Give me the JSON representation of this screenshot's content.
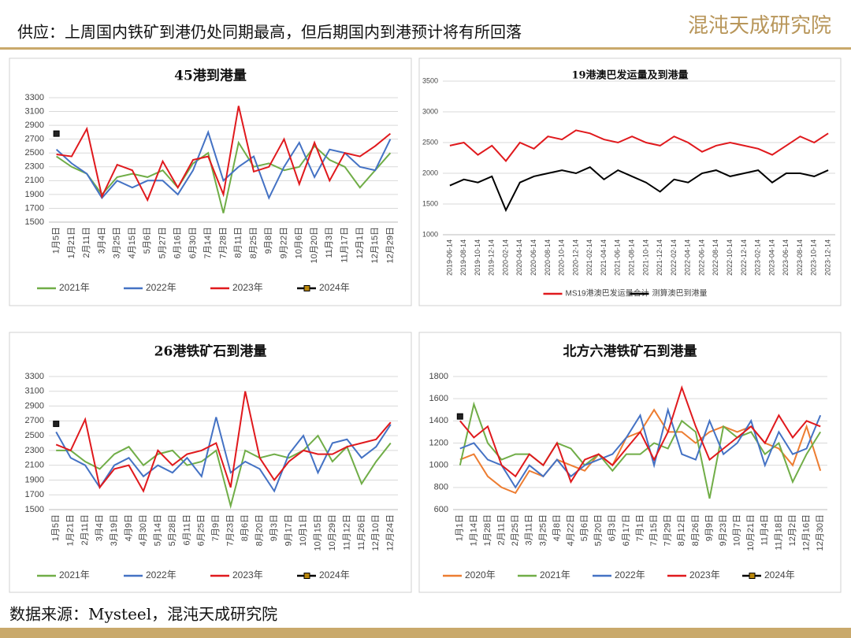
{
  "header": {
    "title": "供应：上周国内铁矿到港仍处同期最高，但后期国内到港预计将有所回落",
    "logo": "混沌天成研究院"
  },
  "footer": "数据来源：Mysteel，混沌天成研究院",
  "chart_data": [
    {
      "type": "line",
      "title": "45港到港量",
      "categories": [
        "1月5日",
        "1月21日",
        "2月11日",
        "3月4日",
        "3月25日",
        "4月15日",
        "5月6日",
        "5月27日",
        "6月16日",
        "6月30日",
        "7月14日",
        "7月28日",
        "8月11日",
        "8月25日",
        "9月8日",
        "9月22日",
        "10月6日",
        "10月20日",
        "11月3日",
        "11月17日",
        "12月1日",
        "12月15日",
        "12月29日"
      ],
      "ylim": [
        1500,
        3300
      ],
      "yticks": [
        1500,
        1700,
        1900,
        2100,
        2300,
        2500,
        2700,
        2900,
        3100,
        3300
      ],
      "grid": true,
      "series": [
        {
          "name": "2021年",
          "color": "#70ad47",
          "values": [
            2450,
            2300,
            2200,
            1900,
            2150,
            2200,
            2150,
            2250,
            2000,
            2350,
            2500,
            1630,
            2650,
            2300,
            2350,
            2250,
            2300,
            2600,
            2400,
            2300,
            2000,
            2250,
            2500
          ]
        },
        {
          "name": "2022年",
          "color": "#4472c4",
          "values": [
            2550,
            2350,
            2200,
            1850,
            2100,
            2000,
            2100,
            2100,
            1900,
            2250,
            2800,
            2100,
            2300,
            2450,
            1850,
            2300,
            2650,
            2150,
            2550,
            2500,
            2300,
            2250,
            2700
          ]
        },
        {
          "name": "2023年",
          "color": "#e0191d",
          "values": [
            2480,
            2450,
            2850,
            1870,
            2330,
            2250,
            1820,
            2380,
            2000,
            2400,
            2450,
            1900,
            3180,
            2230,
            2300,
            2700,
            2050,
            2650,
            2100,
            2500,
            2450,
            2600,
            2780
          ]
        },
        {
          "name": "2024年",
          "color": "#000000",
          "marker": "square",
          "values": [
            2780,
            null,
            null,
            null,
            null,
            null,
            null,
            null,
            null,
            null,
            null,
            null,
            null,
            null,
            null,
            null,
            null,
            null,
            null,
            null,
            null,
            null,
            null
          ]
        }
      ]
    },
    {
      "type": "line",
      "title": "19港澳巴发运量及到港量",
      "categories": [
        "2019-06-14",
        "2019-08-14",
        "2019-10-14",
        "2019-12-14",
        "2020-02-14",
        "2020-04-14",
        "2020-06-14",
        "2020-08-14",
        "2020-10-14",
        "2020-12-14",
        "2021-02-14",
        "2021-04-14",
        "2021-06-14",
        "2021-08-14",
        "2021-10-14",
        "2021-12-14",
        "2022-02-14",
        "2022-04-14",
        "2022-06-14",
        "2022-08-14",
        "2022-10-14",
        "2022-12-14",
        "2023-02-14",
        "2023-04-14",
        "2023-06-14",
        "2023-08-14",
        "2023-10-14",
        "2023-12-14"
      ],
      "ylim": [
        1000,
        3500
      ],
      "yticks": [
        1000,
        1500,
        2000,
        2500,
        3000,
        3500
      ],
      "grid": true,
      "series": [
        {
          "name": "MS19港澳巴发运量合计",
          "color": "#e0191d",
          "values": [
            2450,
            2500,
            2300,
            2450,
            2200,
            2500,
            2400,
            2600,
            2550,
            2700,
            2650,
            2550,
            2500,
            2600,
            2500,
            2450,
            2600,
            2500,
            2350,
            2450,
            2500,
            2450,
            2400,
            2300,
            2450,
            2600,
            2500,
            2650
          ]
        },
        {
          "name": "测算澳巴到港量",
          "color": "#000000",
          "values": [
            1800,
            1900,
            1850,
            1950,
            1400,
            1850,
            1950,
            2000,
            2050,
            2000,
            2100,
            1900,
            2050,
            1950,
            1850,
            1700,
            1900,
            1850,
            2000,
            2050,
            1950,
            2000,
            2050,
            1850,
            2000,
            2000,
            1950,
            2050
          ]
        }
      ]
    },
    {
      "type": "line",
      "title": "26港铁矿石到港量",
      "categories": [
        "1月5日",
        "1月21日",
        "2月11日",
        "3月4日",
        "3月19日",
        "4月9日",
        "4月30日",
        "5月14日",
        "5月28日",
        "6月11日",
        "6月25日",
        "7月9日",
        "7月23日",
        "8月6日",
        "8月20日",
        "9月3日",
        "9月17日",
        "10月1日",
        "10月15日",
        "10月29日",
        "11月12日",
        "11月26日",
        "12月10日",
        "12月24日"
      ],
      "ylim": [
        1500,
        3300
      ],
      "yticks": [
        1500,
        1700,
        1900,
        2100,
        2300,
        2500,
        2700,
        2900,
        3100,
        3300
      ],
      "grid": true,
      "series": [
        {
          "name": "2021年",
          "color": "#70ad47",
          "values": [
            2300,
            2300,
            2150,
            2050,
            2250,
            2350,
            2100,
            2250,
            2300,
            2100,
            2150,
            2300,
            1550,
            2300,
            2200,
            2250,
            2200,
            2300,
            2500,
            2150,
            2350,
            1850,
            2150,
            2400
          ]
        },
        {
          "name": "2022年",
          "color": "#4472c4",
          "values": [
            2550,
            2200,
            2100,
            1800,
            2100,
            2200,
            1950,
            2100,
            2000,
            2200,
            1950,
            2750,
            2000,
            2150,
            2050,
            1750,
            2250,
            2500,
            2000,
            2400,
            2450,
            2200,
            2350,
            2650
          ]
        },
        {
          "name": "2023年",
          "color": "#e0191d",
          "values": [
            2380,
            2300,
            2720,
            1800,
            2050,
            2100,
            1750,
            2300,
            2100,
            2250,
            2300,
            2400,
            1800,
            3100,
            2200,
            1900,
            2150,
            2300,
            2250,
            2250,
            2350,
            2400,
            2450,
            2680
          ]
        },
        {
          "name": "2024年",
          "color": "#000000",
          "marker": "square",
          "values": [
            2660,
            null,
            null,
            null,
            null,
            null,
            null,
            null,
            null,
            null,
            null,
            null,
            null,
            null,
            null,
            null,
            null,
            null,
            null,
            null,
            null,
            null,
            null,
            null
          ]
        }
      ]
    },
    {
      "type": "line",
      "title": "北方六港铁矿石到港量",
      "categories": [
        "1月1日",
        "1月14日",
        "1月28日",
        "2月11日",
        "2月25日",
        "3月11日",
        "3月25日",
        "4月8日",
        "4月22日",
        "5月6日",
        "5月20日",
        "6月3日",
        "6月17日",
        "7月1日",
        "7月15日",
        "7月29日",
        "8月12日",
        "8月26日",
        "9月9日",
        "9月23日",
        "10月7日",
        "10月21日",
        "11月4日",
        "11月18日",
        "12月2日",
        "12月16日",
        "12月30日"
      ],
      "ylim": [
        600,
        1800
      ],
      "yticks": [
        600,
        800,
        1000,
        1200,
        1400,
        1600,
        1800
      ],
      "grid": true,
      "series": [
        {
          "name": "2020年",
          "color": "#ed7d31",
          "values": [
            1050,
            1100,
            900,
            800,
            750,
            950,
            900,
            1050,
            1000,
            950,
            1100,
            1000,
            1250,
            1300,
            1500,
            1300,
            1300,
            1200,
            1300,
            1350,
            1300,
            1350,
            1200,
            1150,
            1000,
            1350,
            950
          ]
        },
        {
          "name": "2021年",
          "color": "#70ad47",
          "values": [
            1000,
            1550,
            1200,
            1050,
            1100,
            1100,
            1000,
            1200,
            1150,
            1000,
            1100,
            950,
            1100,
            1100,
            1200,
            1150,
            1400,
            1300,
            700,
            1350,
            1250,
            1300,
            1100,
            1200,
            850,
            1100,
            1300
          ]
        },
        {
          "name": "2022年",
          "color": "#4472c4",
          "values": [
            1150,
            1200,
            1050,
            1000,
            800,
            1000,
            900,
            1050,
            900,
            1000,
            1050,
            1100,
            1250,
            1450,
            1000,
            1500,
            1100,
            1050,
            1400,
            1100,
            1200,
            1400,
            1000,
            1300,
            1100,
            1150,
            1450
          ]
        },
        {
          "name": "2023年",
          "color": "#e0191d",
          "values": [
            1400,
            1250,
            1350,
            1000,
            900,
            1100,
            1000,
            1200,
            850,
            1050,
            1100,
            1000,
            1150,
            1300,
            1050,
            1300,
            1700,
            1350,
            1050,
            1150,
            1250,
            1350,
            1200,
            1450,
            1250,
            1400,
            1350
          ]
        },
        {
          "name": "2024年",
          "color": "#000000",
          "marker": "square",
          "values": [
            1440,
            null,
            null,
            null,
            null,
            null,
            null,
            null,
            null,
            null,
            null,
            null,
            null,
            null,
            null,
            null,
            null,
            null,
            null,
            null,
            null,
            null,
            null,
            null,
            null,
            null,
            null
          ]
        }
      ]
    }
  ]
}
